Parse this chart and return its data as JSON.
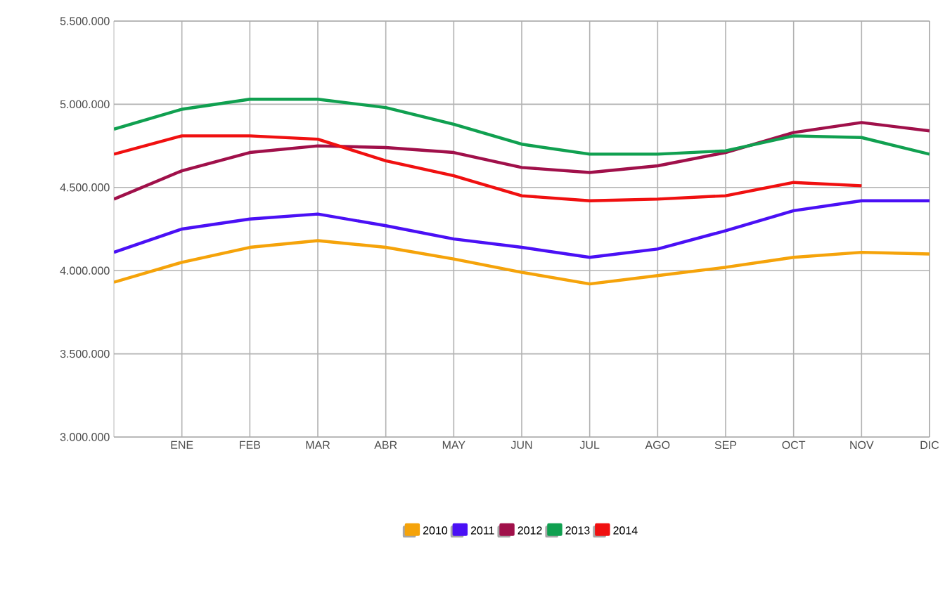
{
  "chart_data": {
    "type": "line",
    "categories": [
      null,
      "ENE",
      "FEB",
      "MAR",
      "ABR",
      "MAY",
      "JUN",
      "JUL",
      "AGO",
      "SEP",
      "OCT",
      "NOV",
      "DIC"
    ],
    "series": [
      {
        "name": "2010",
        "color": "#f5a30a",
        "values": [
          3930000,
          4050000,
          4140000,
          4180000,
          4140000,
          4070000,
          3990000,
          3920000,
          3970000,
          4020000,
          4080000,
          4110000,
          4100000
        ]
      },
      {
        "name": "2011",
        "color": "#4a10f5",
        "values": [
          4110000,
          4250000,
          4310000,
          4340000,
          4270000,
          4190000,
          4140000,
          4080000,
          4130000,
          4240000,
          4360000,
          4420000,
          4420000
        ]
      },
      {
        "name": "2012",
        "color": "#a0104a",
        "values": [
          4430000,
          4600000,
          4710000,
          4750000,
          4740000,
          4710000,
          4620000,
          4590000,
          4630000,
          4710000,
          4830000,
          4890000,
          4840000
        ]
      },
      {
        "name": "2013",
        "color": "#10a050",
        "values": [
          4850000,
          4970000,
          5030000,
          5030000,
          4980000,
          4880000,
          4760000,
          4700000,
          4700000,
          4720000,
          4810000,
          4800000,
          4700000
        ]
      },
      {
        "name": "2014",
        "color": "#f01010",
        "values": [
          4700000,
          4810000,
          4810000,
          4790000,
          4660000,
          4570000,
          4450000,
          4420000,
          4430000,
          4450000,
          4530000,
          4510000,
          null
        ]
      }
    ],
    "ylim": [
      3000000,
      5500000
    ],
    "yticks": [
      {
        "value": 3000000,
        "label": "3.000.000"
      },
      {
        "value": 3500000,
        "label": "3.500.000"
      },
      {
        "value": 4000000,
        "label": "4.000.000"
      },
      {
        "value": 4500000,
        "label": "4.500.000"
      },
      {
        "value": 5000000,
        "label": "5.000.000"
      },
      {
        "value": 5500000,
        "label": "5.500.000"
      }
    ],
    "grid": true,
    "legend": "bottom",
    "marker": "none",
    "line_style": "solid"
  }
}
